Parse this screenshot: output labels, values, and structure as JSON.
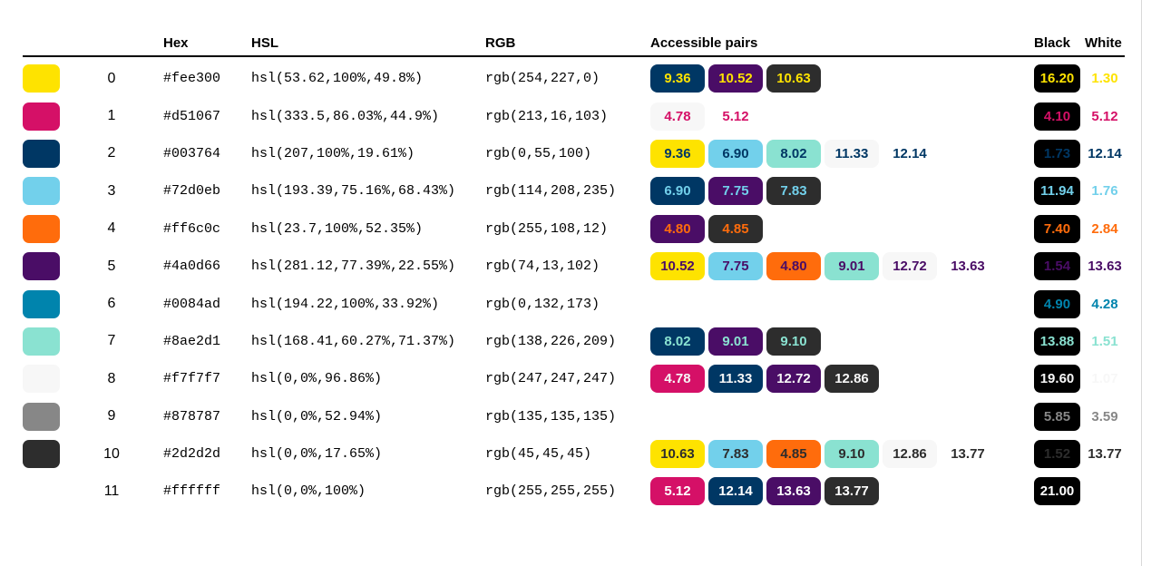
{
  "header": {
    "hex": "Hex",
    "hsl": "HSL",
    "rgb": "RGB",
    "pairs": "Accessible pairs",
    "black": "Black",
    "white": "White"
  },
  "colors": {
    "rule": "#000000",
    "black_badge_bg": "#000000",
    "frame_line": "#d9d9d9"
  },
  "rows": [
    {
      "index": "0",
      "hex": "#fee300",
      "hsl": "hsl(53.62,100%,49.8%)",
      "rgb": "rgb(254,227,0)",
      "pairs": [
        {
          "ratio": "9.36",
          "bg": "#003764"
        },
        {
          "ratio": "10.52",
          "bg": "#4a0d66"
        },
        {
          "ratio": "10.63",
          "bg": "#2d2d2d"
        }
      ],
      "black": "16.20",
      "white": "1.30"
    },
    {
      "index": "1",
      "hex": "#d51067",
      "hsl": "hsl(333.5,86.03%,44.9%)",
      "rgb": "rgb(213,16,103)",
      "pairs": [
        {
          "ratio": "4.78",
          "bg": "#f7f7f7"
        },
        {
          "ratio": "5.12",
          "bg": "#ffffff"
        }
      ],
      "black": "4.10",
      "white": "5.12"
    },
    {
      "index": "2",
      "hex": "#003764",
      "hsl": "hsl(207,100%,19.61%)",
      "rgb": "rgb(0,55,100)",
      "pairs": [
        {
          "ratio": "9.36",
          "bg": "#fee300"
        },
        {
          "ratio": "6.90",
          "bg": "#72d0eb"
        },
        {
          "ratio": "8.02",
          "bg": "#8ae2d1"
        },
        {
          "ratio": "11.33",
          "bg": "#f7f7f7"
        },
        {
          "ratio": "12.14",
          "bg": "#ffffff"
        }
      ],
      "black": "1.73",
      "white": "12.14"
    },
    {
      "index": "3",
      "hex": "#72d0eb",
      "hsl": "hsl(193.39,75.16%,68.43%)",
      "rgb": "rgb(114,208,235)",
      "pairs": [
        {
          "ratio": "6.90",
          "bg": "#003764"
        },
        {
          "ratio": "7.75",
          "bg": "#4a0d66"
        },
        {
          "ratio": "7.83",
          "bg": "#2d2d2d"
        }
      ],
      "black": "11.94",
      "white": "1.76"
    },
    {
      "index": "4",
      "hex": "#ff6c0c",
      "hsl": "hsl(23.7,100%,52.35%)",
      "rgb": "rgb(255,108,12)",
      "pairs": [
        {
          "ratio": "4.80",
          "bg": "#4a0d66"
        },
        {
          "ratio": "4.85",
          "bg": "#2d2d2d"
        }
      ],
      "black": "7.40",
      "white": "2.84"
    },
    {
      "index": "5",
      "hex": "#4a0d66",
      "hsl": "hsl(281.12,77.39%,22.55%)",
      "rgb": "rgb(74,13,102)",
      "pairs": [
        {
          "ratio": "10.52",
          "bg": "#fee300"
        },
        {
          "ratio": "7.75",
          "bg": "#72d0eb"
        },
        {
          "ratio": "4.80",
          "bg": "#ff6c0c"
        },
        {
          "ratio": "9.01",
          "bg": "#8ae2d1"
        },
        {
          "ratio": "12.72",
          "bg": "#f7f7f7"
        },
        {
          "ratio": "13.63",
          "bg": "#ffffff"
        }
      ],
      "black": "1.54",
      "white": "13.63"
    },
    {
      "index": "6",
      "hex": "#0084ad",
      "hsl": "hsl(194.22,100%,33.92%)",
      "rgb": "rgb(0,132,173)",
      "pairs": [],
      "black": "4.90",
      "white": "4.28"
    },
    {
      "index": "7",
      "hex": "#8ae2d1",
      "hsl": "hsl(168.41,60.27%,71.37%)",
      "rgb": "rgb(138,226,209)",
      "pairs": [
        {
          "ratio": "8.02",
          "bg": "#003764"
        },
        {
          "ratio": "9.01",
          "bg": "#4a0d66"
        },
        {
          "ratio": "9.10",
          "bg": "#2d2d2d"
        }
      ],
      "black": "13.88",
      "white": "1.51"
    },
    {
      "index": "8",
      "hex": "#f7f7f7",
      "hsl": "hsl(0,0%,96.86%)",
      "rgb": "rgb(247,247,247)",
      "pairs": [
        {
          "ratio": "4.78",
          "bg": "#d51067"
        },
        {
          "ratio": "11.33",
          "bg": "#003764"
        },
        {
          "ratio": "12.72",
          "bg": "#4a0d66"
        },
        {
          "ratio": "12.86",
          "bg": "#2d2d2d"
        }
      ],
      "black": "19.60",
      "white": "1.07"
    },
    {
      "index": "9",
      "hex": "#878787",
      "hsl": "hsl(0,0%,52.94%)",
      "rgb": "rgb(135,135,135)",
      "pairs": [],
      "black": "5.85",
      "white": "3.59"
    },
    {
      "index": "10",
      "hex": "#2d2d2d",
      "hsl": "hsl(0,0%,17.65%)",
      "rgb": "rgb(45,45,45)",
      "pairs": [
        {
          "ratio": "10.63",
          "bg": "#fee300"
        },
        {
          "ratio": "7.83",
          "bg": "#72d0eb"
        },
        {
          "ratio": "4.85",
          "bg": "#ff6c0c"
        },
        {
          "ratio": "9.10",
          "bg": "#8ae2d1"
        },
        {
          "ratio": "12.86",
          "bg": "#f7f7f7"
        },
        {
          "ratio": "13.77",
          "bg": "#ffffff"
        }
      ],
      "black": "1.52",
      "white": "13.77"
    },
    {
      "index": "11",
      "hex": "#ffffff",
      "hsl": "hsl(0,0%,100%)",
      "rgb": "rgb(255,255,255)",
      "pairs": [
        {
          "ratio": "5.12",
          "bg": "#d51067"
        },
        {
          "ratio": "12.14",
          "bg": "#003764"
        },
        {
          "ratio": "13.63",
          "bg": "#4a0d66"
        },
        {
          "ratio": "13.77",
          "bg": "#2d2d2d"
        }
      ],
      "black": "21.00",
      "white": null
    }
  ]
}
